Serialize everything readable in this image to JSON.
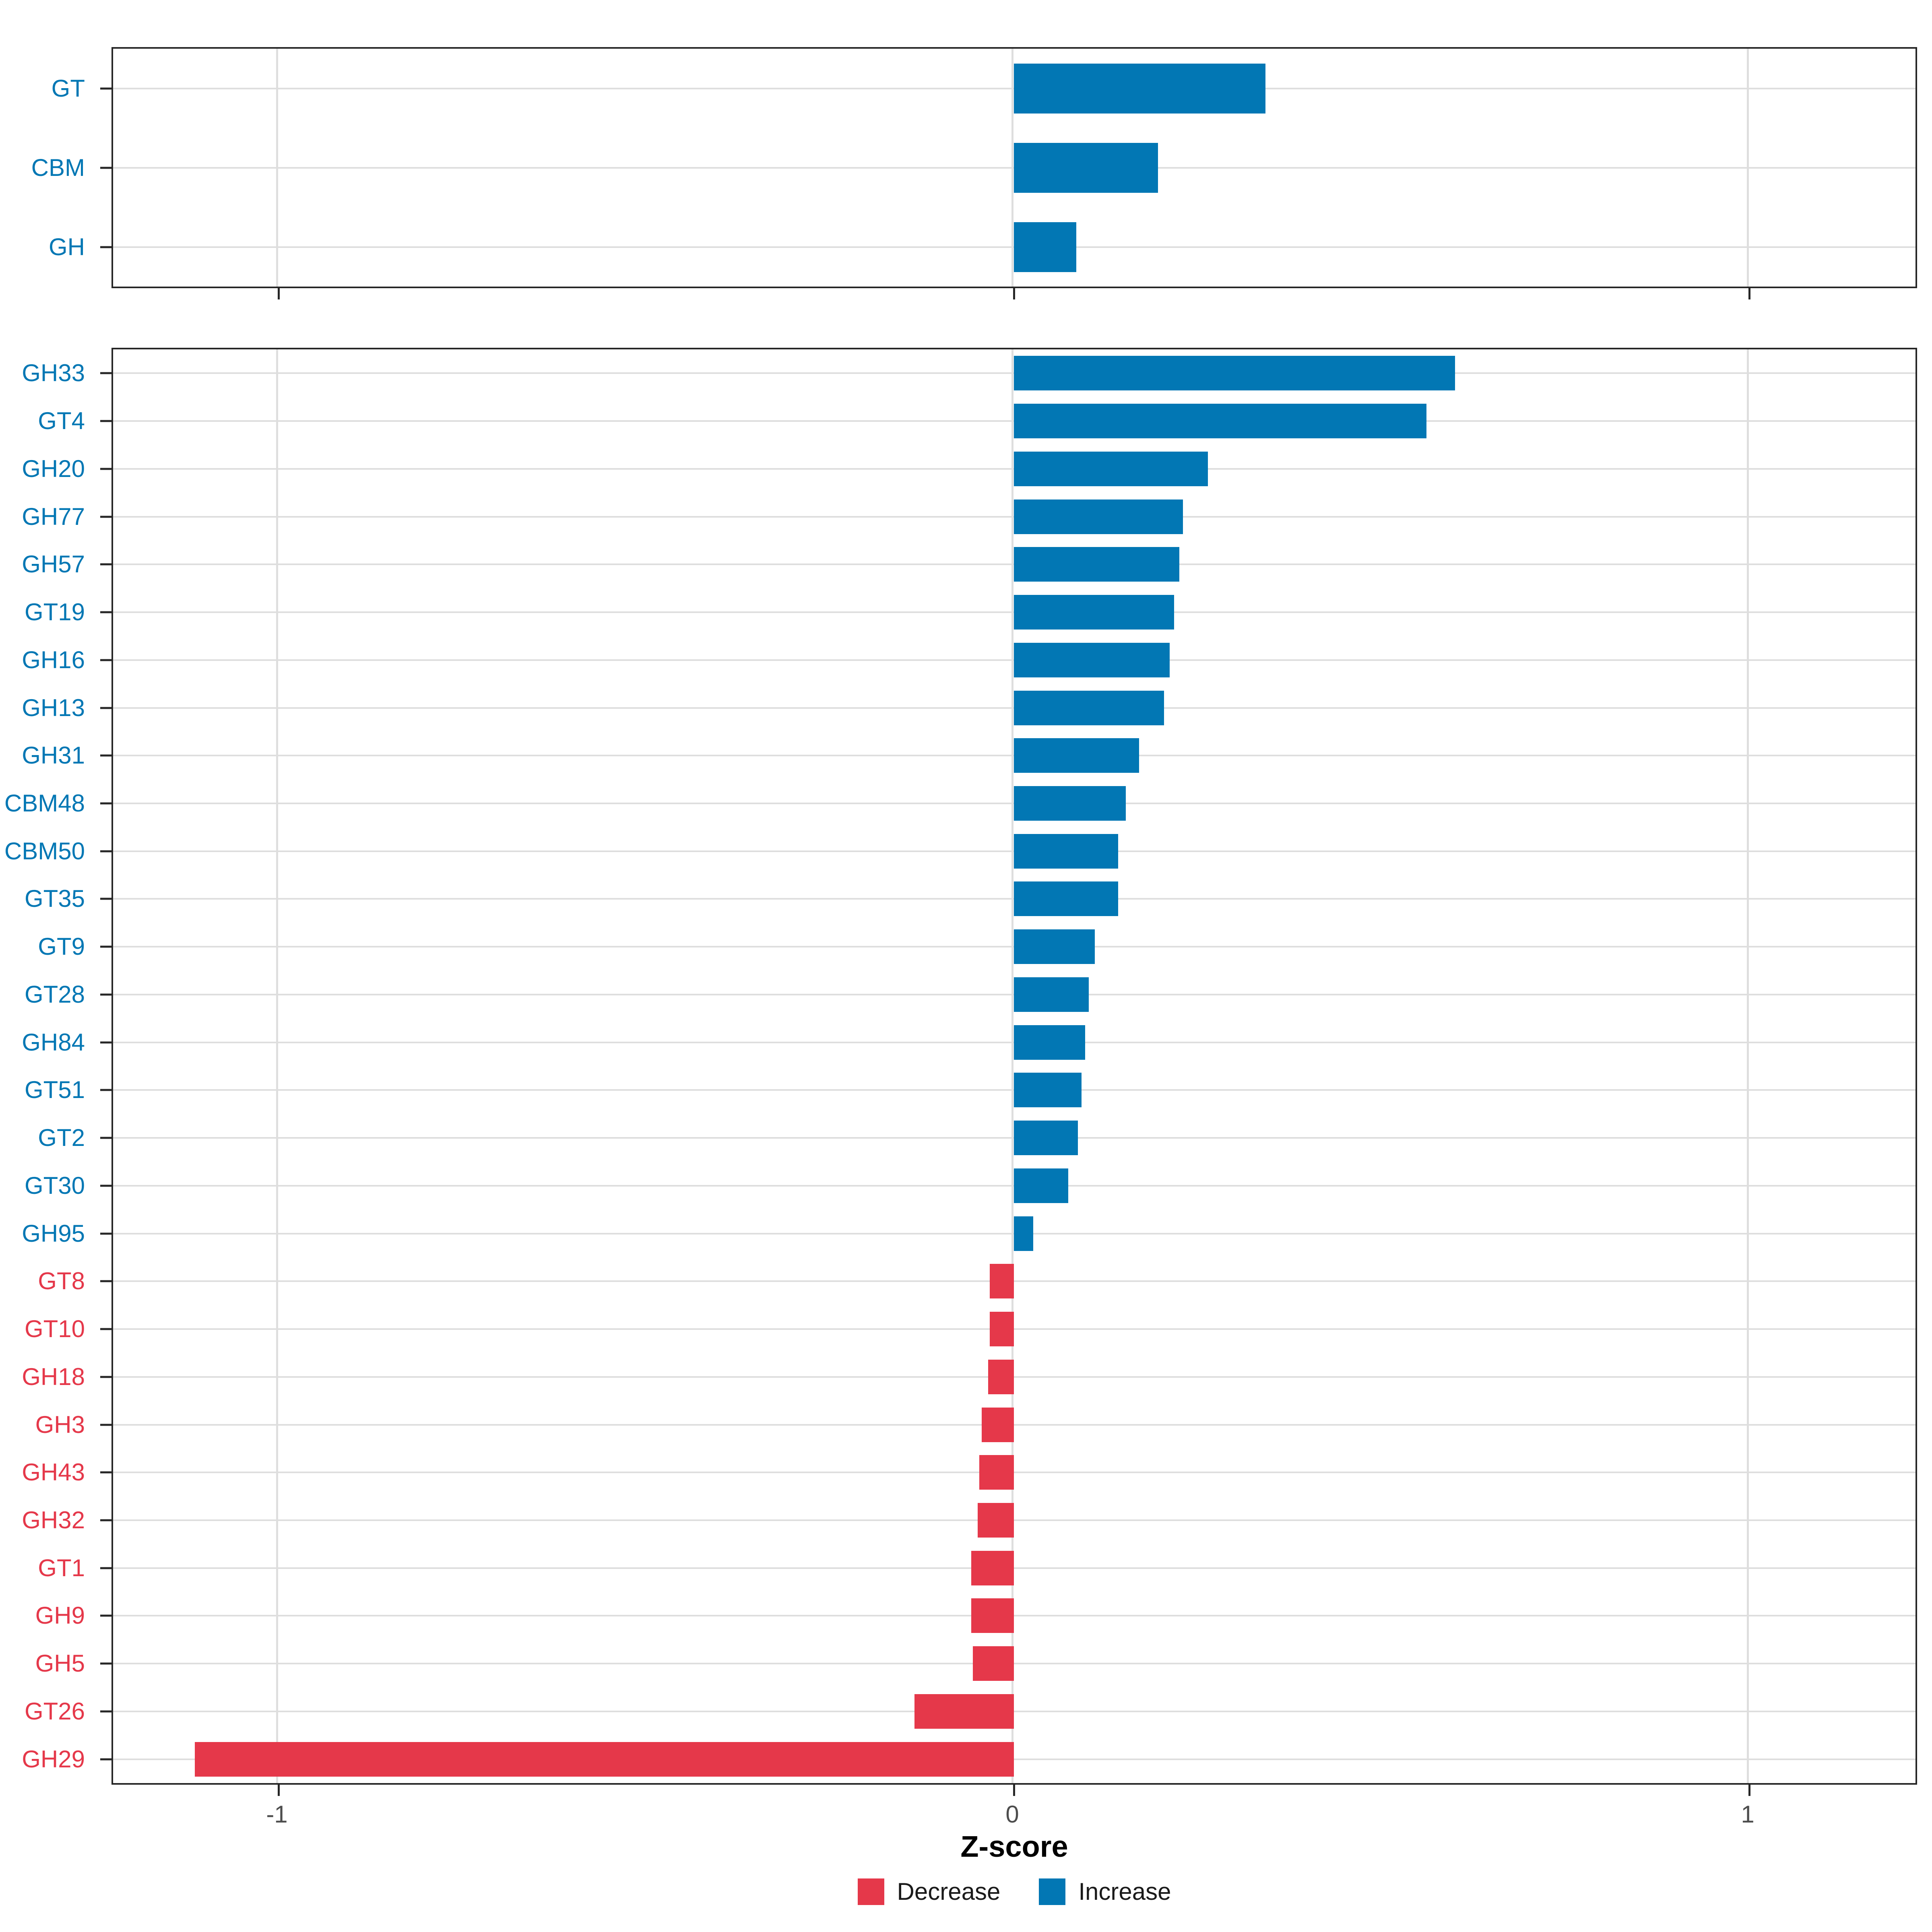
{
  "axis": {
    "xlabel": "Z-score",
    "ticks": [
      {
        "label": "-1",
        "value": -1
      },
      {
        "label": "0",
        "value": 0
      },
      {
        "label": "1",
        "value": 1
      }
    ],
    "xlim": [
      -1.227,
      1.23
    ]
  },
  "legend": {
    "items": [
      {
        "label": "Decrease",
        "color": "#E5384A"
      },
      {
        "label": "Increase",
        "color": "#0277B4"
      }
    ]
  },
  "colors": {
    "increase": "#0277B4",
    "decrease": "#E5384A",
    "grid": "#DEDEDE",
    "panel_border": "#262626",
    "axis_text": "#4D4D4D",
    "axis_title": "#000000"
  },
  "chart_data": [
    {
      "type": "bar",
      "panel": "top",
      "orientation": "horizontal",
      "title": "",
      "xlabel": "Z-score",
      "ylabel": "",
      "xlim": [
        -1.227,
        1.23
      ],
      "grid": "major",
      "legend_position": "none",
      "categories": [
        "GT",
        "CBM",
        "GH"
      ],
      "values": [
        0.342,
        0.196,
        0.085
      ],
      "directions": [
        "Increase",
        "Increase",
        "Increase"
      ]
    },
    {
      "type": "bar",
      "panel": "bottom",
      "orientation": "horizontal",
      "title": "",
      "xlabel": "Z-score",
      "ylabel": "",
      "xlim": [
        -1.227,
        1.23
      ],
      "grid": "major",
      "legend_position": "bottom",
      "categories": [
        "GH33",
        "GT4",
        "GH20",
        "GH77",
        "GH57",
        "GT19",
        "GH16",
        "GH13",
        "GH31",
        "CBM48",
        "CBM50",
        "GT35",
        "GT9",
        "GT28",
        "GH84",
        "GT51",
        "GT2",
        "GT30",
        "GH95",
        "GT8",
        "GT10",
        "GH18",
        "GH3",
        "GH43",
        "GH32",
        "GT1",
        "GH9",
        "GH5",
        "GT26",
        "GH29"
      ],
      "values": [
        0.6,
        0.561,
        0.264,
        0.23,
        0.225,
        0.218,
        0.212,
        0.204,
        0.17,
        0.152,
        0.142,
        0.142,
        0.11,
        0.102,
        0.097,
        0.092,
        0.087,
        0.074,
        0.026,
        -0.033,
        -0.033,
        -0.035,
        -0.044,
        -0.047,
        -0.049,
        -0.058,
        -0.058,
        -0.056,
        -0.135,
        -1.114
      ],
      "directions": [
        "Increase",
        "Increase",
        "Increase",
        "Increase",
        "Increase",
        "Increase",
        "Increase",
        "Increase",
        "Increase",
        "Increase",
        "Increase",
        "Increase",
        "Increase",
        "Increase",
        "Increase",
        "Increase",
        "Increase",
        "Increase",
        "Increase",
        "Decrease",
        "Decrease",
        "Decrease",
        "Decrease",
        "Decrease",
        "Decrease",
        "Decrease",
        "Decrease",
        "Decrease",
        "Decrease",
        "Decrease"
      ]
    }
  ]
}
